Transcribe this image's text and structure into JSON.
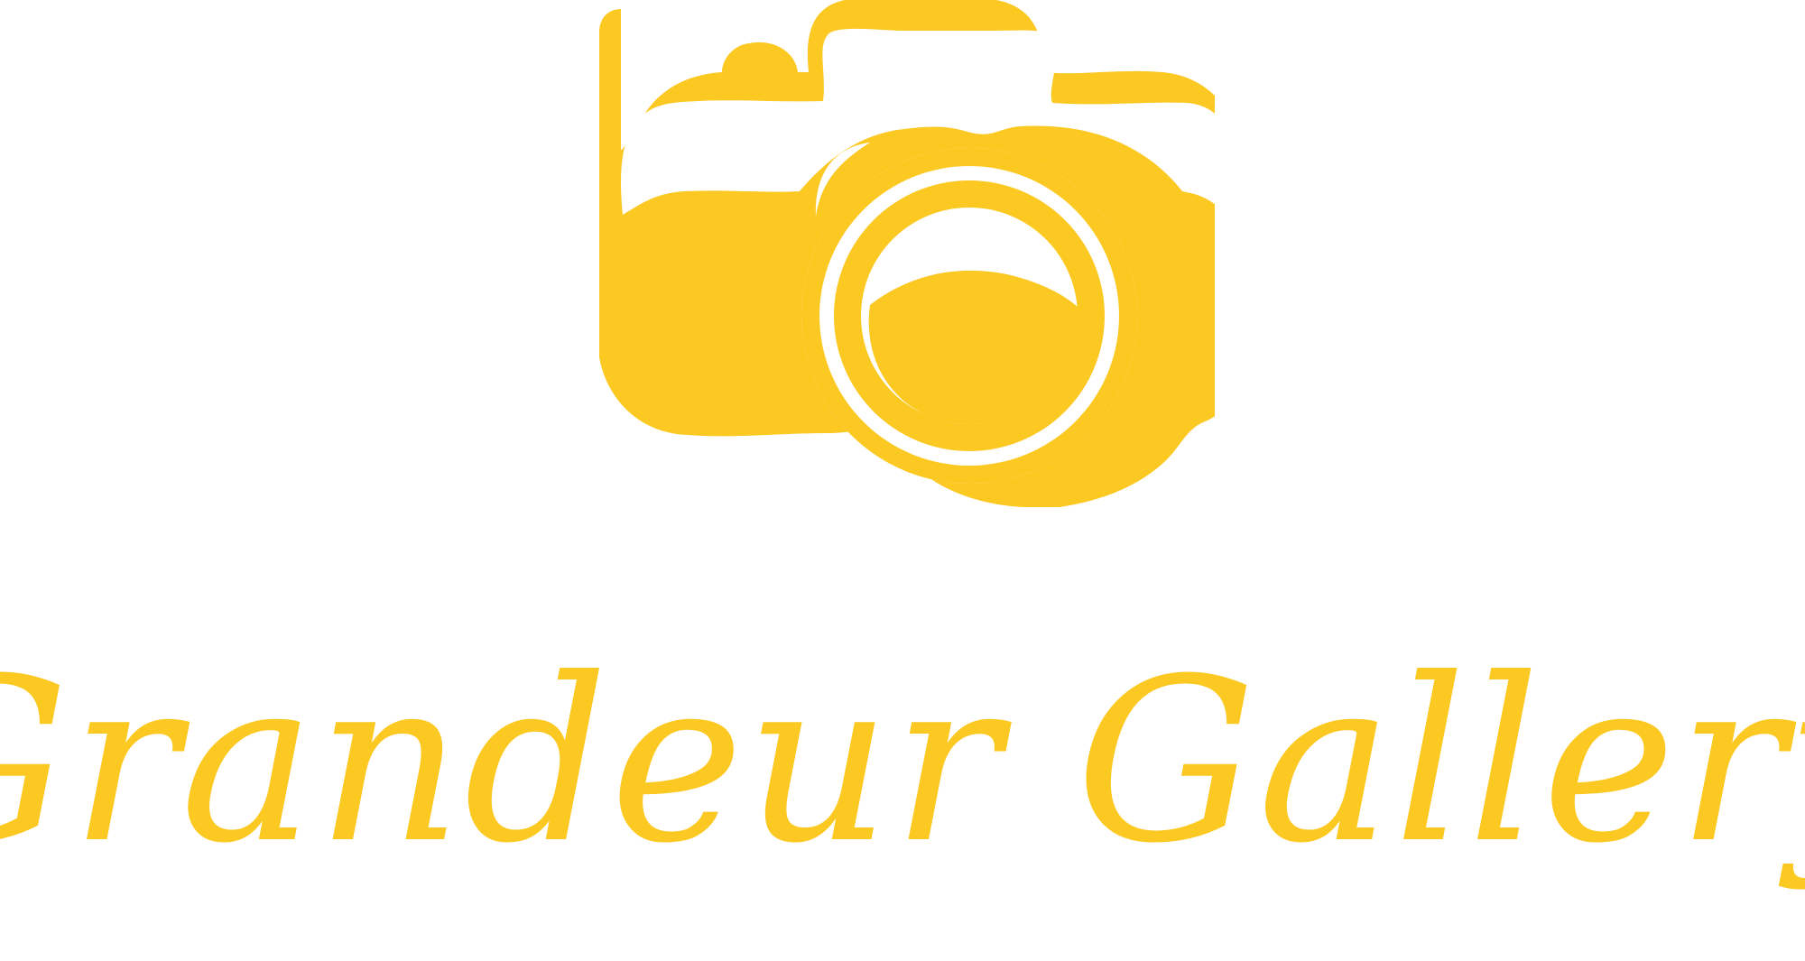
{
  "logo": {
    "brand_name": "Grandeur Gallery",
    "icon": "camera-icon",
    "color": "#FCC822",
    "background": "#FFFFFF"
  }
}
